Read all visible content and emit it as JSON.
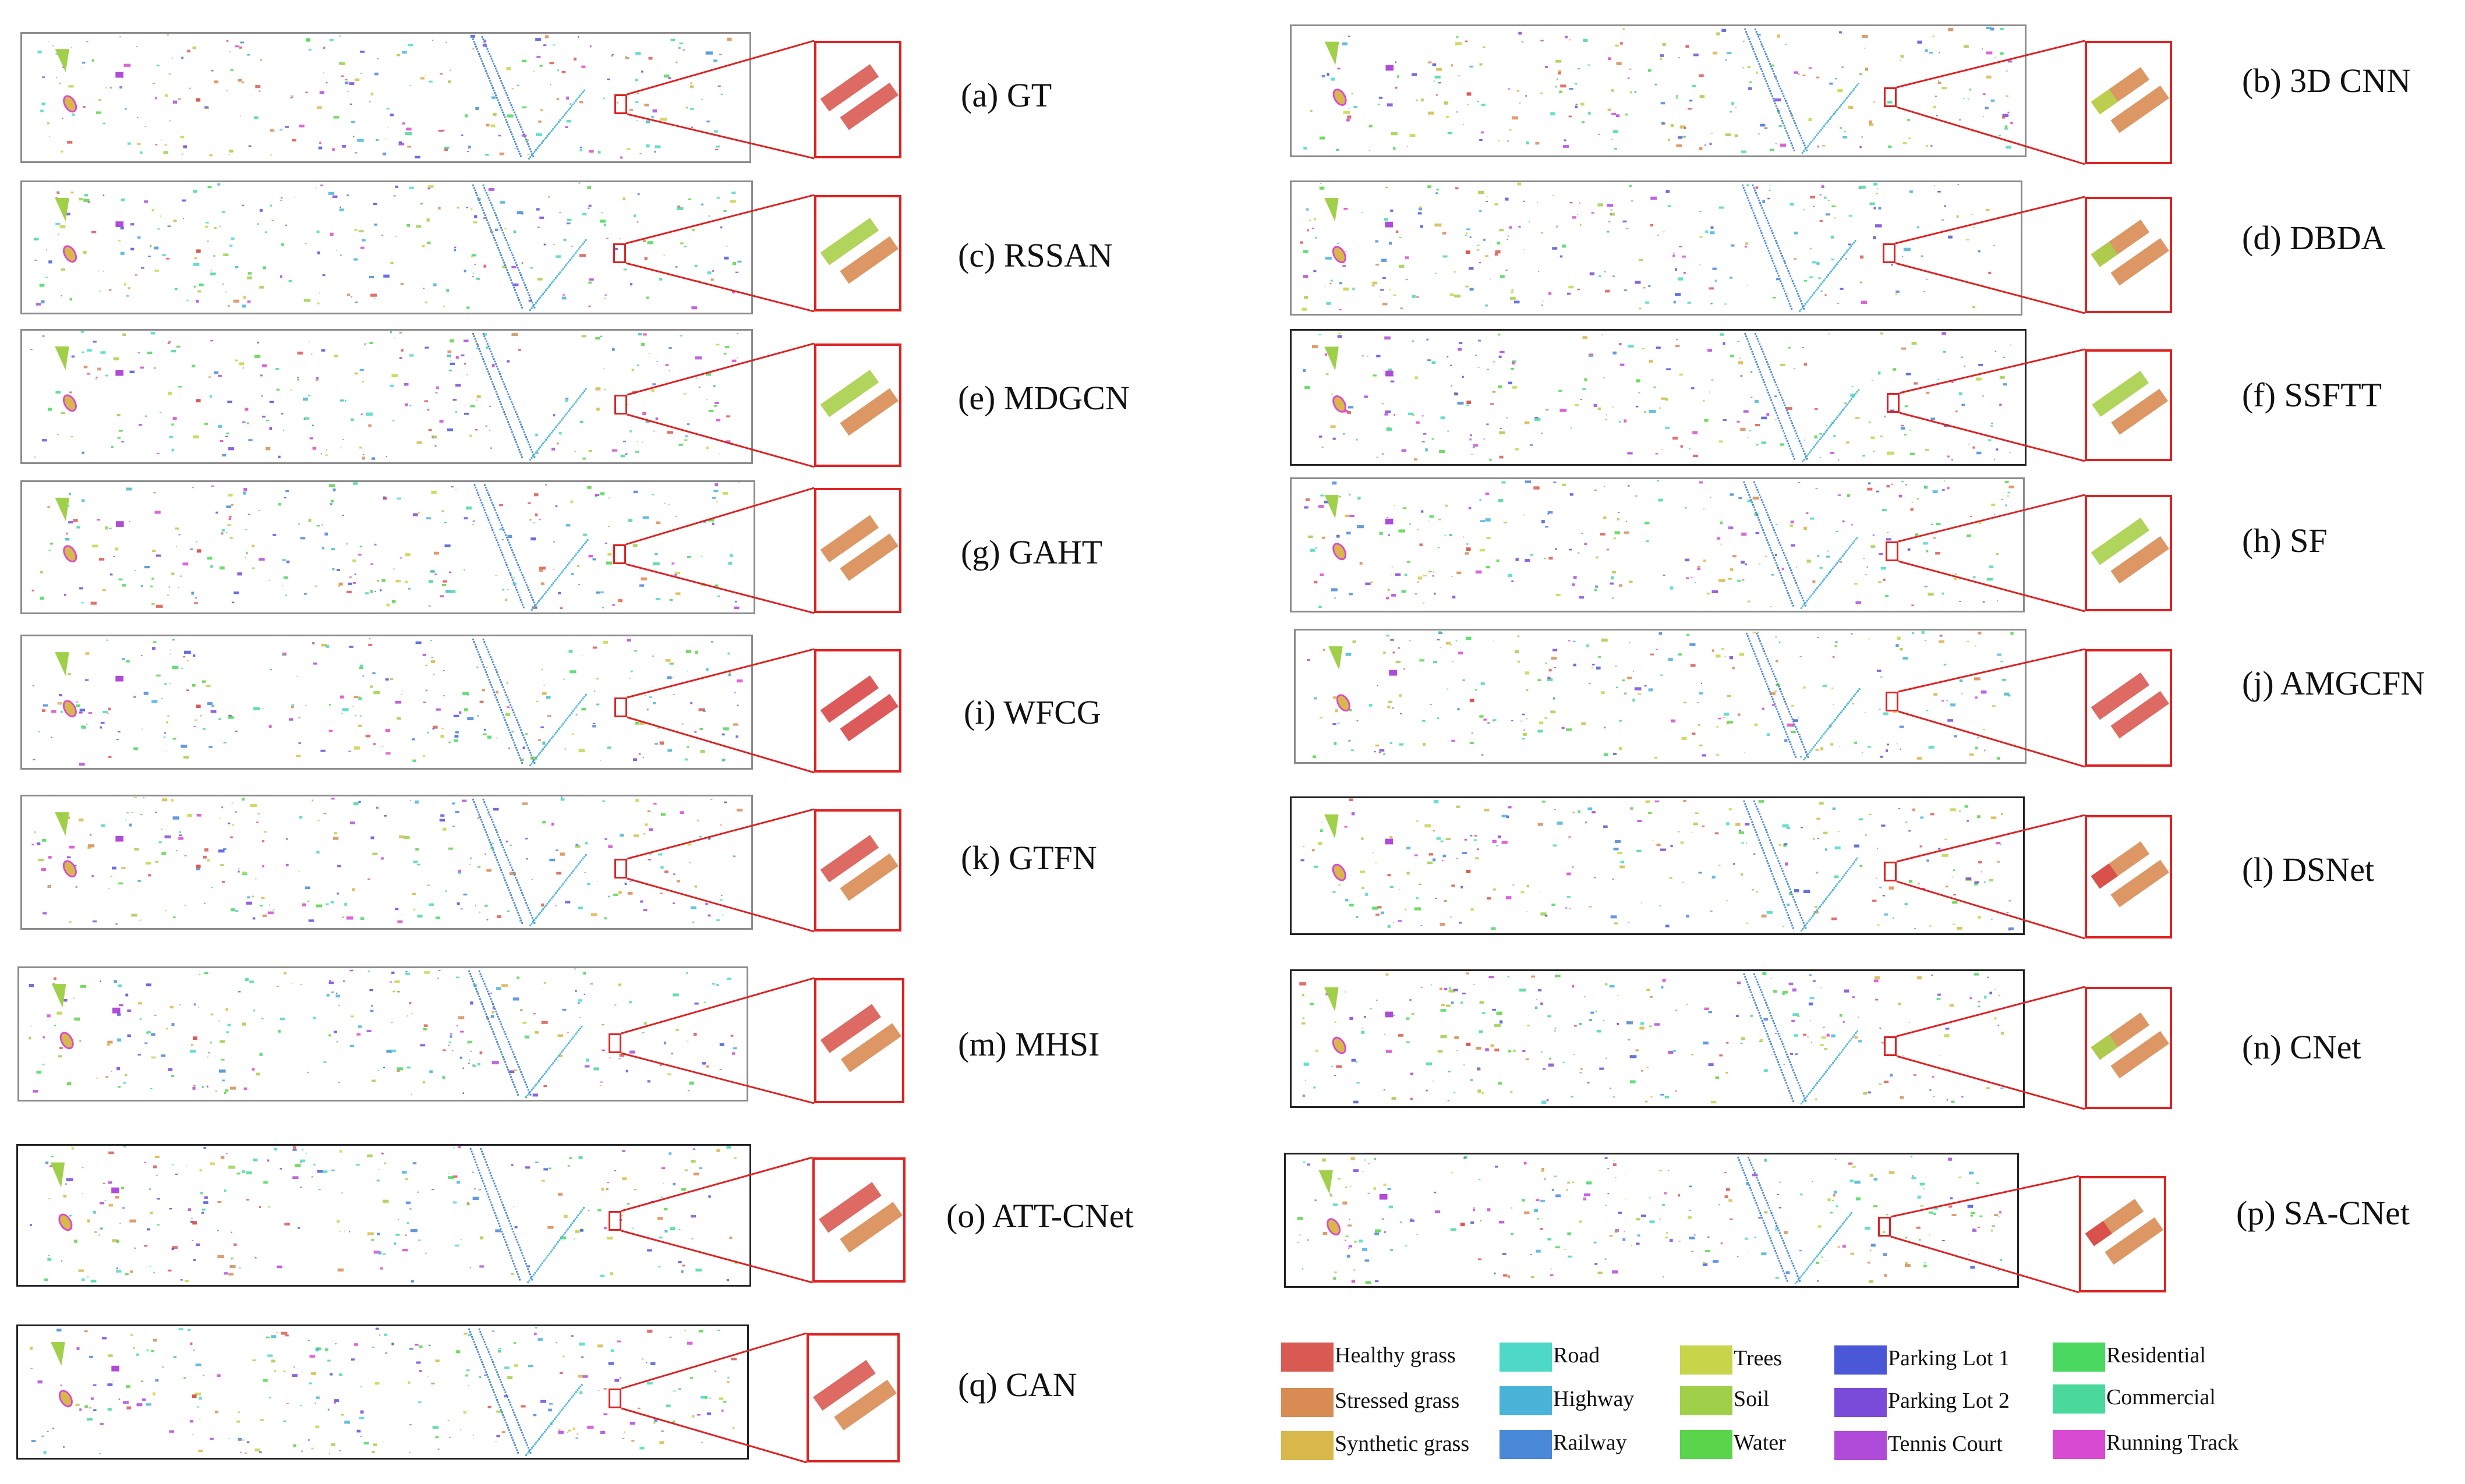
{
  "panels": [
    {
      "caption": "(a) GT",
      "stripe_colors": [
        "#d95a52",
        "#d95a52"
      ]
    },
    {
      "caption": "(b) 3D CNN",
      "stripe_colors": [
        "#d88c54",
        "#d88c54"
      ],
      "accent": "#b8d44a"
    },
    {
      "caption": "(c) RSSAN",
      "stripe_colors": [
        "#a8d04a",
        "#d88c54"
      ]
    },
    {
      "caption": "(d) DBDA",
      "stripe_colors": [
        "#d88c54",
        "#d88c54"
      ],
      "accent": "#a8d04a"
    },
    {
      "caption": "(e) MDGCN",
      "stripe_colors": [
        "#a8d04a",
        "#d88c54"
      ]
    },
    {
      "caption": "(f) SSFTT",
      "stripe_colors": [
        "#a8d04a",
        "#d88c54"
      ]
    },
    {
      "caption": "(g) GAHT",
      "stripe_colors": [
        "#d88c54",
        "#d88c54"
      ]
    },
    {
      "caption": "(h) SF",
      "stripe_colors": [
        "#a8d04a",
        "#d88c54"
      ]
    },
    {
      "caption": "(i) WFCG",
      "stripe_colors": [
        "#d94848",
        "#d94848"
      ]
    },
    {
      "caption": "(j) AMGCFN",
      "stripe_colors": [
        "#d95a52",
        "#d95a52"
      ]
    },
    {
      "caption": "(k) GTFN",
      "stripe_colors": [
        "#d95a52",
        "#d88c54"
      ]
    },
    {
      "caption": "(l) DSNet",
      "stripe_colors": [
        "#d88c54",
        "#d88c54"
      ],
      "accent": "#d94848"
    },
    {
      "caption": "(m) MHSI",
      "stripe_colors": [
        "#d95a52",
        "#d88c54"
      ]
    },
    {
      "caption": "(n) CNet",
      "stripe_colors": [
        "#d88c54",
        "#d88c54"
      ],
      "accent": "#a8d04a"
    },
    {
      "caption": "(o) ATT-CNet",
      "stripe_colors": [
        "#d95a52",
        "#d88c54"
      ]
    },
    {
      "caption": "(p) SA-CNet",
      "stripe_colors": [
        "#d88c54",
        "#d88c54"
      ],
      "accent": "#d94848"
    },
    {
      "caption": "(q) CAN",
      "stripe_colors": [
        "#d95a52",
        "#d88c54"
      ]
    }
  ],
  "legend": [
    {
      "label": "Healthy grass",
      "color": "#d95a52"
    },
    {
      "label": "Stressed grass",
      "color": "#d88c54"
    },
    {
      "label": "Synthetic grass",
      "color": "#d8b84a"
    },
    {
      "label": "Road",
      "color": "#4ed8c8"
    },
    {
      "label": "Highway",
      "color": "#4ab4d8"
    },
    {
      "label": "Railway",
      "color": "#4a88d8"
    },
    {
      "label": "Trees",
      "color": "#c8d44a"
    },
    {
      "label": "Soil",
      "color": "#a0d04a"
    },
    {
      "label": "Water",
      "color": "#5ad44a"
    },
    {
      "label": "Parking Lot 1",
      "color": "#4a58d8"
    },
    {
      "label": "Parking Lot 2",
      "color": "#7a4ad8"
    },
    {
      "label": "Tennis Court",
      "color": "#b04ad8"
    },
    {
      "label": "Residential",
      "color": "#4ad860"
    },
    {
      "label": "Commercial",
      "color": "#4ad89c"
    },
    {
      "label": "Running Track",
      "color": "#d84ad0"
    }
  ]
}
